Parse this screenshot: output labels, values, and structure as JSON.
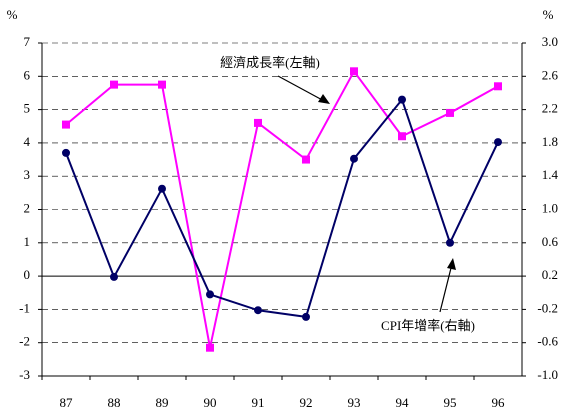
{
  "chart_data": {
    "type": "line",
    "categories": [
      "87",
      "88",
      "89",
      "90",
      "91",
      "92",
      "93",
      "94",
      "95",
      "96"
    ],
    "ylabel": "%",
    "y2label": "%",
    "ylim": [
      -3,
      7
    ],
    "yticks": [
      -3,
      -2,
      -1,
      0,
      1,
      2,
      3,
      4,
      5,
      6,
      7
    ],
    "y2lim": [
      -1,
      3
    ],
    "y2ticks": [
      {
        "value": -1,
        "label": "-1.0"
      },
      -0.6,
      -0.2,
      0.2,
      0.6,
      {
        "value": 1,
        "label": "1.0"
      },
      1.4,
      1.8,
      2.2,
      2.6,
      {
        "value": 3,
        "label": "3.0"
      }
    ],
    "grid": true,
    "series": [
      {
        "name": "經濟成長率(左軸)",
        "color": "#ff00ff",
        "marker": "square",
        "axis": "y",
        "values": [
          4.55,
          5.75,
          5.75,
          -2.15,
          4.6,
          3.5,
          6.15,
          4.2,
          4.9,
          5.7
        ]
      },
      {
        "name": "CPI年增率(右軸)",
        "color": "#000066",
        "marker": "circle",
        "axis": "y2",
        "values": [
          1.68,
          0.19,
          1.25,
          -0.02,
          -0.21,
          -0.29,
          1.61,
          2.32,
          0.6,
          1.81
        ]
      }
    ]
  }
}
